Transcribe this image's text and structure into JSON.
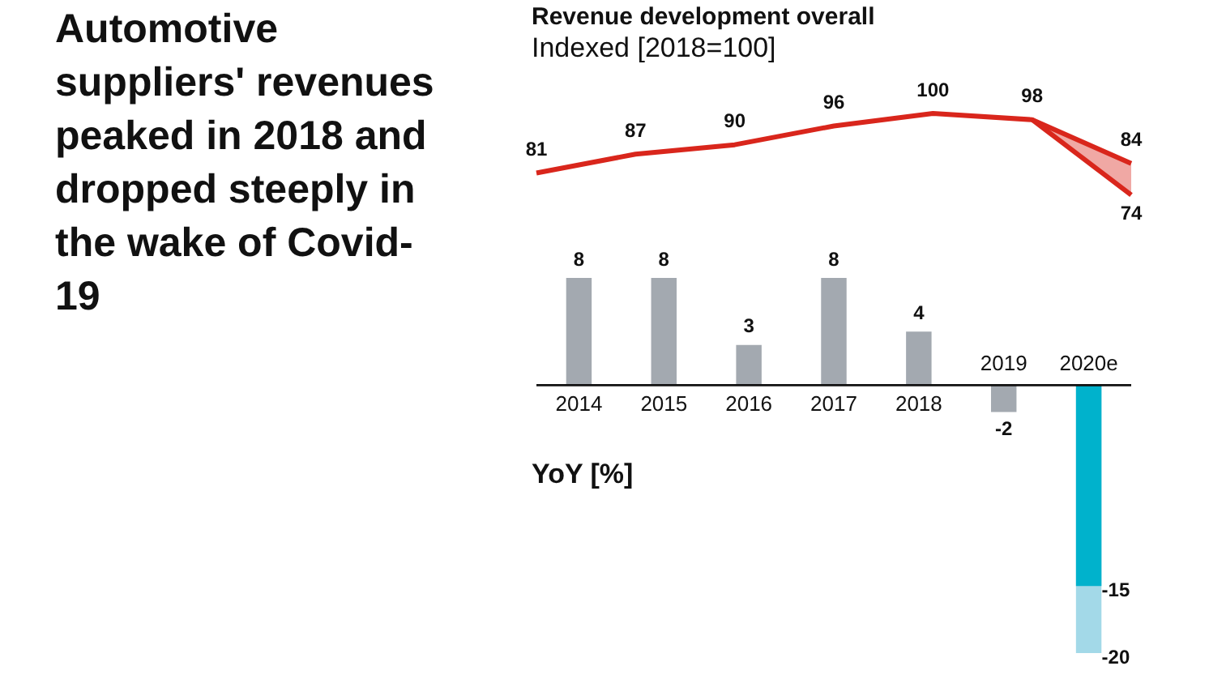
{
  "chart_data": [
    {
      "type": "line",
      "title": "Automotive suppliers' revenues peaked in 2018 and dropped steeply in the wake of Covid-19",
      "subtitle": "Revenue development overall",
      "annotations": [
        "Indexed [2018=100]"
      ],
      "categories": [
        null,
        null,
        null,
        null,
        null,
        null,
        null
      ],
      "tick_labels": false,
      "grid": false,
      "legend": false,
      "series": [
        {
          "color": "#d9261c",
          "values": [
            81,
            87,
            90,
            96,
            100,
            98,
            84
          ],
          "lower": [
            null,
            null,
            null,
            null,
            null,
            98,
            74
          ],
          "upper": [
            null,
            null,
            null,
            null,
            null,
            98,
            84
          ],
          "value_labels": [
            "81",
            "87",
            "90",
            "96",
            "100",
            "98",
            "84"
          ]
        },
        {
          "color": "#d9261c",
          "values": [
            null,
            null,
            null,
            null,
            null,
            98,
            74
          ],
          "value_labels": [
            null,
            null,
            null,
            null,
            null,
            null,
            "74"
          ]
        }
      ]
    },
    {
      "type": "bar",
      "annotations": [
        "YoY [%]"
      ],
      "categories": [
        "2014",
        "2015",
        "2016",
        "2017",
        "2018",
        "2019",
        "2020e"
      ],
      "tick_labels": "x",
      "grid": false,
      "legend": false,
      "series": [
        {
          "colors": [
            "#a3a9b0",
            "#a3a9b0",
            "#a3a9b0",
            "#a3a9b0",
            "#a3a9b0",
            "#a3a9b0",
            "#a3d9e8"
          ],
          "values": [
            8,
            8,
            3,
            8,
            4,
            -2,
            -20
          ],
          "value_labels": [
            "8",
            "8",
            "3",
            "8",
            "4",
            "-2",
            "-20"
          ]
        },
        {
          "color": "#00b2cc",
          "values": [
            null,
            null,
            null,
            null,
            null,
            null,
            -15
          ],
          "value_labels": [
            null,
            null,
            null,
            null,
            null,
            null,
            "-15"
          ]
        }
      ]
    }
  ]
}
